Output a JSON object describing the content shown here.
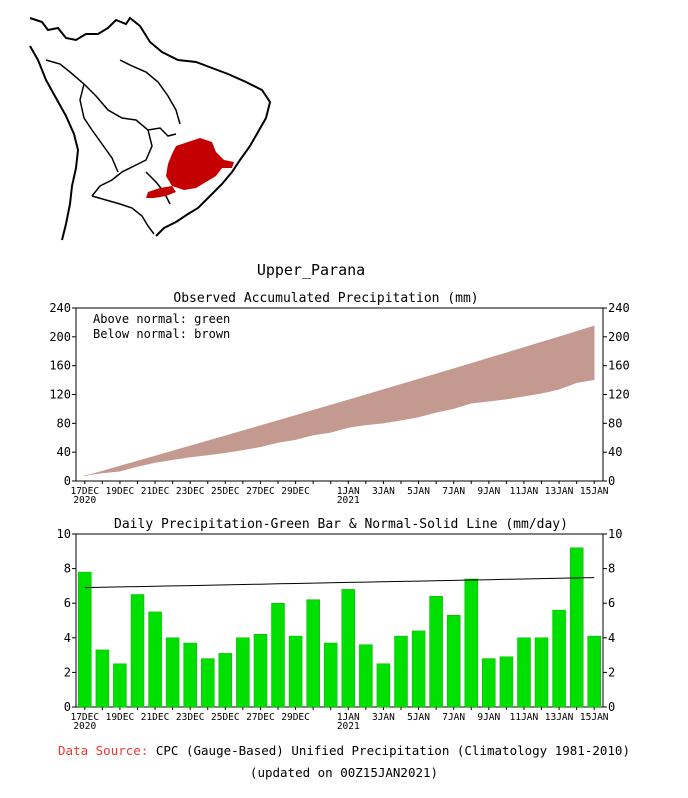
{
  "region_title": "Upper_Parana",
  "colors": {
    "map_region": "#c40000",
    "accum_fill": "#c49a90",
    "daily_bar": "#00e000",
    "normal_line": "#000000",
    "source_label": "#e8382d"
  },
  "footer": {
    "source_label": "Data Source:",
    "source_text": "CPC (Gauge-Based) Unified Precipitation (Climatology 1981-2010)",
    "updated": "(updated on 00Z15JAN2021)"
  },
  "x_tick_labels": [
    "17DEC",
    "19DEC",
    "21DEC",
    "23DEC",
    "25DEC",
    "27DEC",
    "29DEC",
    "1JAN",
    "3JAN",
    "5JAN",
    "7JAN",
    "9JAN",
    "11JAN",
    "13JAN",
    "15JAN"
  ],
  "x_year_labels": [
    {
      "label": "2020",
      "tick": "17DEC"
    },
    {
      "label": "2021",
      "tick": "1JAN"
    }
  ],
  "chart_data": [
    {
      "type": "area",
      "title": "Observed Accumulated Precipitation (mm)",
      "annotations": [
        "Above normal: green",
        "Below normal: brown"
      ],
      "ylim": [
        0,
        240
      ],
      "yticks": [
        0,
        40,
        80,
        120,
        160,
        200,
        240
      ],
      "y_axis_both_sides": true,
      "x": [
        "17DEC",
        "18DEC",
        "19DEC",
        "20DEC",
        "21DEC",
        "22DEC",
        "23DEC",
        "24DEC",
        "25DEC",
        "26DEC",
        "27DEC",
        "28DEC",
        "29DEC",
        "30DEC",
        "31DEC",
        "1JAN",
        "2JAN",
        "3JAN",
        "4JAN",
        "5JAN",
        "6JAN",
        "7JAN",
        "8JAN",
        "9JAN",
        "10JAN",
        "11JAN",
        "12JAN",
        "13JAN",
        "14JAN",
        "15JAN"
      ],
      "series": [
        {
          "name": "Observed",
          "values": [
            7.8,
            11.1,
            13.6,
            20.1,
            25.6,
            29.6,
            33.3,
            36.1,
            39.2,
            43.2,
            47.4,
            53.4,
            57.5,
            63.7,
            67.4,
            74.2,
            77.8,
            80.3,
            84.4,
            88.8,
            95.2,
            100.5,
            107.9,
            110.7,
            113.6,
            117.6,
            121.6,
            127.2,
            136.4,
            140.5
          ]
        },
        {
          "name": "Normal",
          "values": [
            6.9,
            13.8,
            20.8,
            27.7,
            34.7,
            41.7,
            48.7,
            55.7,
            62.7,
            69.8,
            76.8,
            83.9,
            91.0,
            98.2,
            105.3,
            112.5,
            119.7,
            126.9,
            134.1,
            141.4,
            148.6,
            155.9,
            163.2,
            170.6,
            177.9,
            185.3,
            192.7,
            200.1,
            207.6,
            215.1
          ]
        }
      ]
    },
    {
      "type": "bar",
      "title": "Daily Precipitation-Green Bar & Normal-Solid Line (mm/day)",
      "ylim": [
        0,
        10
      ],
      "yticks": [
        0,
        2,
        4,
        6,
        8,
        10
      ],
      "y_axis_both_sides": true,
      "categories": [
        "17DEC",
        "18DEC",
        "19DEC",
        "20DEC",
        "21DEC",
        "22DEC",
        "23DEC",
        "24DEC",
        "25DEC",
        "26DEC",
        "27DEC",
        "28DEC",
        "29DEC",
        "30DEC",
        "31DEC",
        "1JAN",
        "2JAN",
        "3JAN",
        "4JAN",
        "5JAN",
        "6JAN",
        "7JAN",
        "8JAN",
        "9JAN",
        "10JAN",
        "11JAN",
        "12JAN",
        "13JAN",
        "14JAN",
        "15JAN"
      ],
      "series": [
        {
          "name": "Daily",
          "type": "bar",
          "values": [
            7.8,
            3.3,
            2.5,
            6.5,
            5.5,
            4.0,
            3.7,
            2.8,
            3.1,
            4.0,
            4.2,
            6.0,
            4.1,
            6.2,
            3.7,
            6.8,
            3.6,
            2.5,
            4.1,
            4.4,
            6.4,
            5.3,
            7.4,
            2.8,
            2.9,
            4.0,
            4.0,
            5.6,
            9.2,
            4.1
          ]
        },
        {
          "name": "Normal",
          "type": "line",
          "values": [
            6.9,
            6.92,
            6.94,
            6.96,
            6.98,
            7.0,
            7.02,
            7.04,
            7.06,
            7.08,
            7.1,
            7.12,
            7.14,
            7.16,
            7.18,
            7.2,
            7.22,
            7.24,
            7.26,
            7.28,
            7.3,
            7.32,
            7.34,
            7.36,
            7.38,
            7.4,
            7.42,
            7.44,
            7.46,
            7.48
          ]
        }
      ]
    }
  ]
}
